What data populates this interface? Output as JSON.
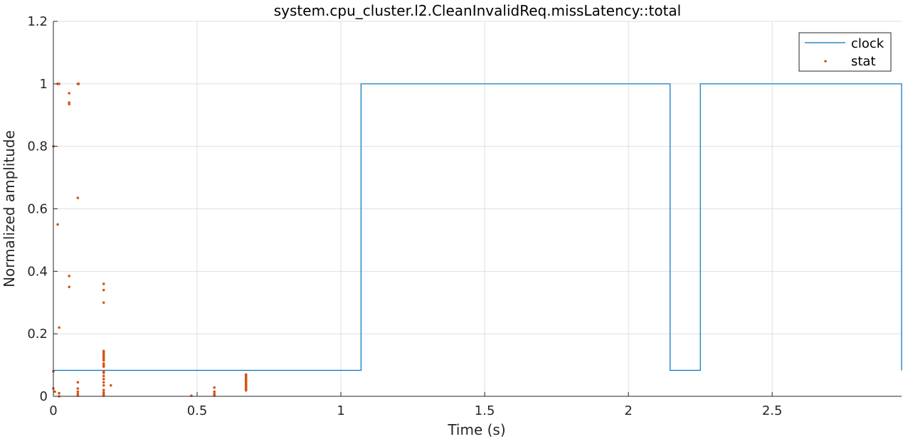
{
  "chart_data": {
    "type": "line",
    "title": "system.cpu_cluster.l2.CleanInvalidReq.missLatency::total",
    "xlabel": "Time (s)",
    "ylabel": "Normalized amplitude",
    "xlim": [
      0,
      2.95
    ],
    "ylim": [
      0,
      1.2
    ],
    "xticks": [
      0,
      0.5,
      1,
      1.5,
      2,
      2.5
    ],
    "xtick_labels": [
      "0",
      "0.5",
      "1",
      "1.5",
      "2",
      "2.5"
    ],
    "yticks": [
      0,
      0.2,
      0.4,
      0.6,
      0.8,
      1,
      1.2
    ],
    "ytick_labels": [
      "0",
      "0.2",
      "0.4",
      "0.6",
      "0.8",
      "1",
      "1.2"
    ],
    "grid": true,
    "legend_position": "top-right",
    "colors": {
      "clock": "#0072BD",
      "stat": "#D95319"
    },
    "series": [
      {
        "name": "clock",
        "kind": "step-line",
        "x": [
          0,
          1.07,
          1.07,
          2.145,
          2.145,
          2.25,
          2.25,
          2.95,
          2.95
        ],
        "y": [
          0.083,
          0.083,
          1,
          1,
          0.083,
          0.083,
          1,
          1,
          0.083
        ]
      },
      {
        "name": "stat",
        "kind": "markers",
        "points": [
          [
            0.0,
            0.08
          ],
          [
            0.0,
            0.8
          ],
          [
            0.0,
            0.025
          ],
          [
            0.005,
            0.015
          ],
          [
            0.015,
            1.0
          ],
          [
            0.02,
            1.0
          ],
          [
            0.015,
            0.55
          ],
          [
            0.02,
            0.22
          ],
          [
            0.02,
            0.01
          ],
          [
            0.02,
            0.0
          ],
          [
            0.055,
            0.97
          ],
          [
            0.055,
            0.94
          ],
          [
            0.055,
            0.935
          ],
          [
            0.055,
            0.385
          ],
          [
            0.055,
            0.35
          ],
          [
            0.085,
            1.0
          ],
          [
            0.088,
            1.0
          ],
          [
            0.085,
            0.635
          ],
          [
            0.085,
            0.045
          ],
          [
            0.085,
            0.025
          ],
          [
            0.085,
            0.015
          ],
          [
            0.085,
            0.008
          ],
          [
            0.085,
            0.002
          ],
          [
            0.175,
            0.36
          ],
          [
            0.175,
            0.34
          ],
          [
            0.175,
            0.3
          ],
          [
            0.175,
            0.145
          ],
          [
            0.175,
            0.14
          ],
          [
            0.175,
            0.135
          ],
          [
            0.175,
            0.13
          ],
          [
            0.175,
            0.125
          ],
          [
            0.175,
            0.12
          ],
          [
            0.175,
            0.115
          ],
          [
            0.175,
            0.105
          ],
          [
            0.175,
            0.1
          ],
          [
            0.175,
            0.095
          ],
          [
            0.175,
            0.08
          ],
          [
            0.175,
            0.075
          ],
          [
            0.175,
            0.065
          ],
          [
            0.175,
            0.055
          ],
          [
            0.175,
            0.045
          ],
          [
            0.175,
            0.035
          ],
          [
            0.175,
            0.02
          ],
          [
            0.175,
            0.012
          ],
          [
            0.175,
            0.006
          ],
          [
            0.175,
            0.002
          ],
          [
            0.2,
            0.035
          ],
          [
            0.48,
            0.002
          ],
          [
            0.56,
            0.028
          ],
          [
            0.56,
            0.015
          ],
          [
            0.56,
            0.008
          ],
          [
            0.56,
            0.002
          ],
          [
            0.67,
            0.07
          ],
          [
            0.67,
            0.067
          ],
          [
            0.67,
            0.064
          ],
          [
            0.67,
            0.061
          ],
          [
            0.67,
            0.058
          ],
          [
            0.67,
            0.055
          ],
          [
            0.67,
            0.052
          ],
          [
            0.67,
            0.049
          ],
          [
            0.67,
            0.046
          ],
          [
            0.67,
            0.043
          ],
          [
            0.67,
            0.04
          ],
          [
            0.67,
            0.037
          ],
          [
            0.67,
            0.034
          ],
          [
            0.67,
            0.031
          ],
          [
            0.67,
            0.028
          ],
          [
            0.67,
            0.025
          ],
          [
            0.67,
            0.022
          ],
          [
            0.67,
            0.019
          ]
        ]
      }
    ]
  }
}
